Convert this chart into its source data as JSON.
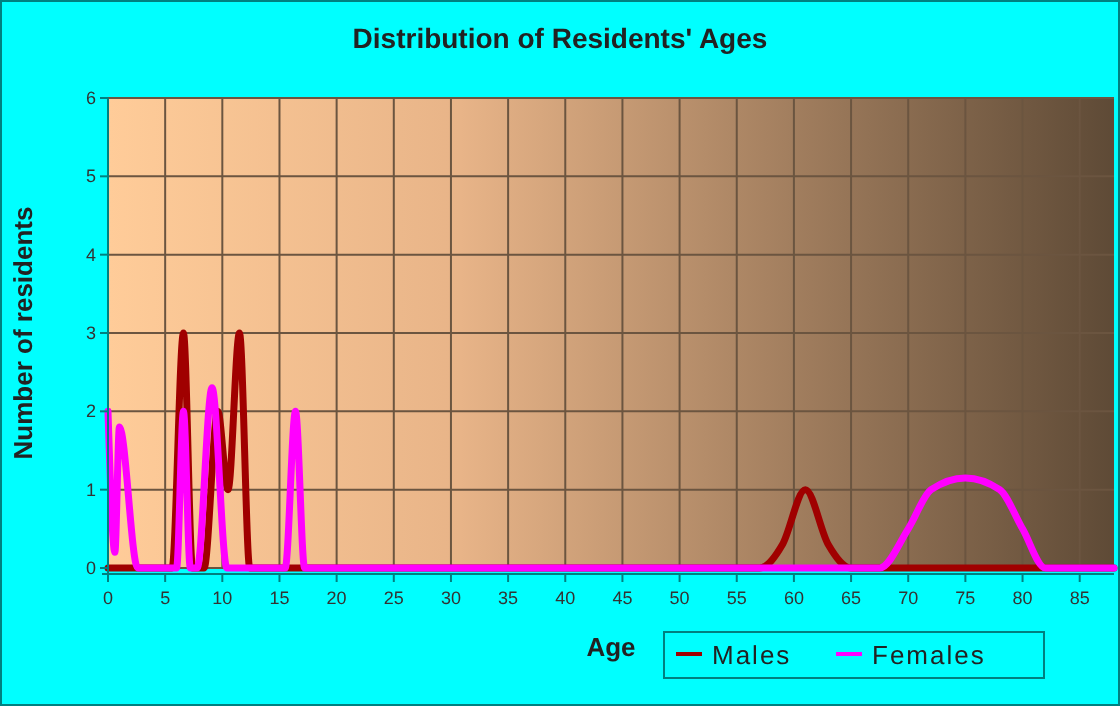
{
  "chart_data": {
    "type": "line",
    "title": "Distribution of Residents' Ages",
    "xlabel": "Age",
    "ylabel": "Number of residents",
    "xlim": [
      0,
      88
    ],
    "xticks": [
      0,
      5,
      10,
      15,
      20,
      25,
      30,
      35,
      40,
      45,
      50,
      55,
      60,
      65,
      70,
      75,
      80,
      85
    ],
    "ylim": [
      0,
      6
    ],
    "yticks": [
      0,
      1,
      2,
      3,
      4,
      5,
      6
    ],
    "grid": true,
    "legend": "bottom right",
    "series": [
      {
        "name": "Males",
        "color": "#a00000",
        "x": [
          0,
          5,
          5.6,
          6.6,
          7.4,
          8.4,
          9.6,
          10.5,
          11.5,
          12.4,
          13,
          57,
          59,
          61,
          63,
          65,
          88
        ],
        "values": [
          0,
          0,
          0,
          3,
          0,
          0,
          2,
          1,
          3,
          0,
          0,
          0,
          0.3,
          1,
          0.3,
          0,
          0
        ]
      },
      {
        "name": "Females",
        "color": "#ff00ff",
        "x": [
          0,
          0.6,
          1,
          2.6,
          6,
          6.6,
          7.2,
          7.8,
          9.1,
          10.4,
          11,
          15.5,
          16.4,
          17.2,
          67.5,
          70,
          72,
          75,
          78,
          80,
          82,
          88
        ],
        "values": [
          2,
          0.2,
          1.8,
          0,
          0,
          2,
          0,
          0,
          2.3,
          0,
          0,
          0,
          2,
          0,
          0,
          0.5,
          1,
          1.15,
          1,
          0.5,
          0,
          0
        ]
      }
    ]
  }
}
